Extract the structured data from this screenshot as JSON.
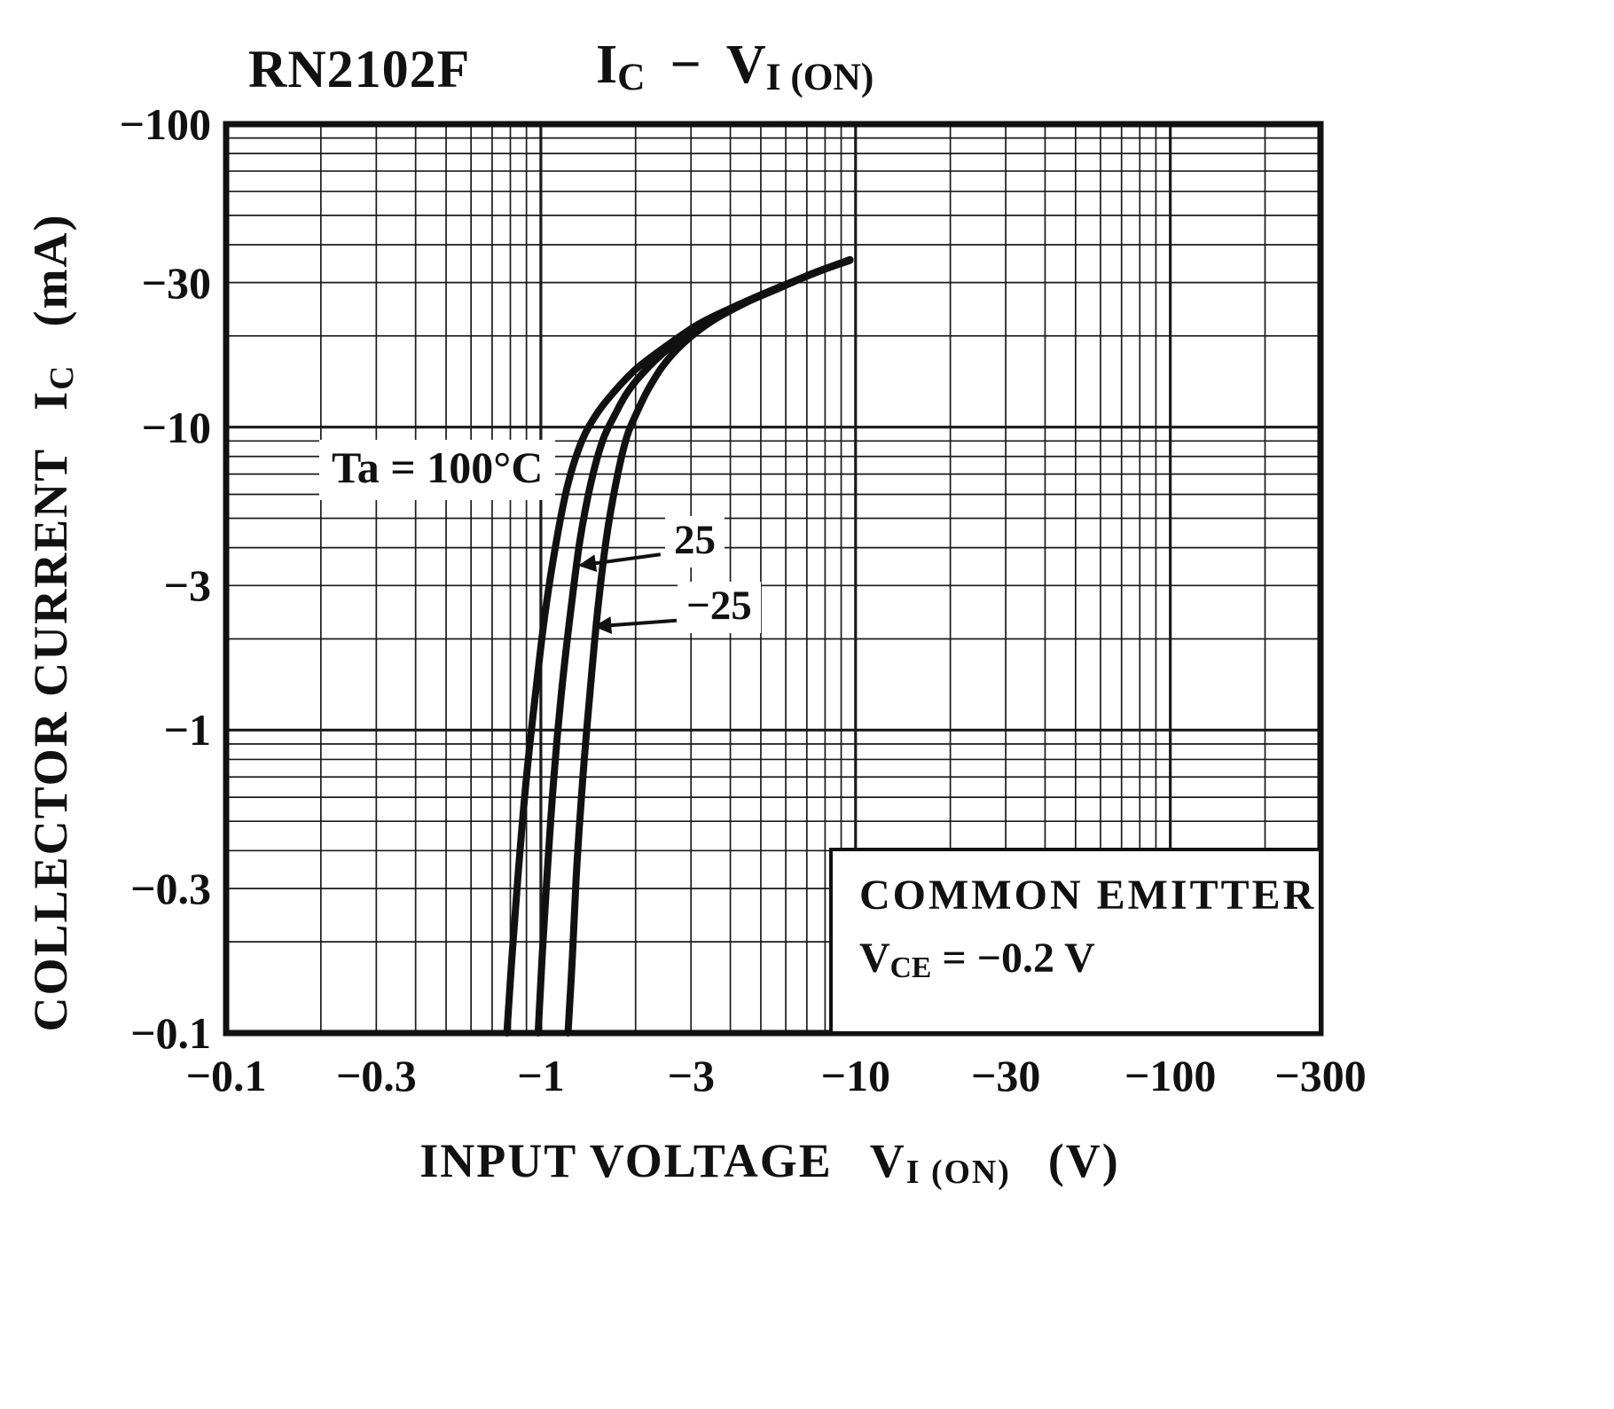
{
  "page": {
    "background": "#ffffff",
    "ink": "#111111"
  },
  "header": {
    "model": "RN2102F",
    "title_parts": {
      "i": "I",
      "i_sub": "C",
      "dash": "−",
      "v": "V",
      "v_sub": "I (ON)"
    }
  },
  "y_axis": {
    "label_parts": {
      "text": "COLLECTOR CURRENT",
      "sym": "I",
      "sym_sub": "C",
      "unit": "(mA)"
    },
    "ticks": [
      {
        "value": 100,
        "label": "−100"
      },
      {
        "value": 30,
        "label": "−30"
      },
      {
        "value": 10,
        "label": "−10"
      },
      {
        "value": 3,
        "label": "−3"
      },
      {
        "value": 1,
        "label": "−1"
      },
      {
        "value": 0.3,
        "label": "−0.3"
      },
      {
        "value": 0.1,
        "label": "−0.1"
      }
    ]
  },
  "x_axis": {
    "label_parts": {
      "text": "INPUT VOLTAGE",
      "sym": "V",
      "sym_sub": "I (ON)",
      "unit": "(V)"
    },
    "ticks": [
      {
        "value": 0.1,
        "label": "−0.1"
      },
      {
        "value": 0.3,
        "label": "−0.3"
      },
      {
        "value": 1,
        "label": "−1"
      },
      {
        "value": 3,
        "label": "−3"
      },
      {
        "value": 10,
        "label": "−10"
      },
      {
        "value": 30,
        "label": "−30"
      },
      {
        "value": 100,
        "label": "−100"
      },
      {
        "value": 300,
        "label": "−300"
      }
    ]
  },
  "annotations": {
    "ta100": "Ta = 100°C",
    "t25": "25",
    "tm25": "−25"
  },
  "condition_box": {
    "line1": "COMMON  EMITTER",
    "sym": "V",
    "sym_sub": "CE",
    "rest": " = −0.2 V"
  },
  "chart_data": {
    "type": "line",
    "title": "RN2102F  IC − VI(ON)",
    "xlabel": "INPUT VOLTAGE  VI(ON)  (V)",
    "ylabel": "COLLECTOR CURRENT  IC  (mA)",
    "x_scale": "log",
    "y_scale": "log",
    "x_range_magnitude": [
      0.1,
      300
    ],
    "y_range_magnitude": [
      0.1,
      100
    ],
    "sign_note": "both axes are negative; magnitudes plotted on log-log grid",
    "grid": "log-log, minor lines at 2-9 per decade, on",
    "condition": "COMMON EMITTER, VCE = −0.2 V",
    "x_ticks": [
      0.1,
      0.3,
      1,
      3,
      10,
      30,
      100,
      300
    ],
    "y_ticks": [
      0.1,
      0.3,
      1,
      3,
      10,
      30,
      100
    ],
    "series": [
      {
        "id": "ta100",
        "name": "Ta = 100°C",
        "points": [
          [
            0.78,
            0.1
          ],
          [
            0.81,
            0.18
          ],
          [
            0.85,
            0.35
          ],
          [
            0.9,
            0.7
          ],
          [
            0.96,
            1.3
          ],
          [
            1.03,
            2.4
          ],
          [
            1.12,
            4.2
          ],
          [
            1.22,
            6.5
          ],
          [
            1.35,
            9.0
          ],
          [
            1.5,
            11.0
          ],
          [
            1.7,
            13.0
          ],
          [
            2.0,
            15.5
          ],
          [
            2.5,
            18.5
          ],
          [
            3.2,
            22.0
          ],
          [
            4.3,
            25.5
          ],
          [
            5.5,
            28.5
          ],
          [
            7.0,
            31.5
          ],
          [
            8.5,
            34.0
          ],
          [
            9.6,
            35.5
          ]
        ]
      },
      {
        "id": "ta25",
        "name": "Ta = 25°C",
        "points": [
          [
            0.98,
            0.1
          ],
          [
            1.01,
            0.18
          ],
          [
            1.05,
            0.35
          ],
          [
            1.1,
            0.7
          ],
          [
            1.16,
            1.3
          ],
          [
            1.24,
            2.4
          ],
          [
            1.33,
            4.2
          ],
          [
            1.44,
            6.5
          ],
          [
            1.57,
            9.0
          ],
          [
            1.72,
            11.0
          ],
          [
            1.9,
            13.2
          ],
          [
            2.2,
            15.8
          ],
          [
            2.65,
            18.8
          ],
          [
            3.35,
            22.2
          ],
          [
            4.4,
            25.7
          ],
          [
            5.6,
            28.6
          ],
          [
            7.0,
            31.6
          ],
          [
            8.5,
            34.1
          ],
          [
            9.6,
            35.6
          ]
        ]
      },
      {
        "id": "tam25",
        "name": "Ta = −25°C",
        "points": [
          [
            1.22,
            0.1
          ],
          [
            1.26,
            0.18
          ],
          [
            1.3,
            0.35
          ],
          [
            1.36,
            0.7
          ],
          [
            1.43,
            1.3
          ],
          [
            1.51,
            2.4
          ],
          [
            1.61,
            4.2
          ],
          [
            1.73,
            6.5
          ],
          [
            1.87,
            9.2
          ],
          [
            2.02,
            11.2
          ],
          [
            2.2,
            13.4
          ],
          [
            2.45,
            16.0
          ],
          [
            2.85,
            19.0
          ],
          [
            3.5,
            22.4
          ],
          [
            4.5,
            25.8
          ],
          [
            5.7,
            28.7
          ],
          [
            7.1,
            31.7
          ],
          [
            8.6,
            34.2
          ],
          [
            9.6,
            35.7
          ]
        ]
      }
    ],
    "arrows": [
      {
        "for": "ta25",
        "from": [
          2.4,
          3.8
        ],
        "to": [
          1.34,
          3.5
        ]
      },
      {
        "for": "tam25",
        "from": [
          2.7,
          2.3
        ],
        "to": [
          1.5,
          2.2
        ]
      }
    ]
  }
}
